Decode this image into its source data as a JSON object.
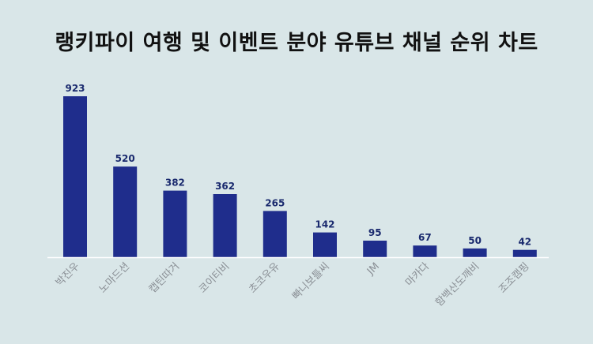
{
  "title": "랭키파이 여행 및 이벤트 분야 유튜브 채널 순위 차트",
  "colors": {
    "background": "#d9e6e8",
    "bar": "#1f2d8c",
    "value_label": "#1a2a6e",
    "category_label": "#8a8f95",
    "baseline": "#ffffff"
  },
  "chart_data": {
    "type": "bar",
    "categories": [
      "박진우",
      "노마드션",
      "캡틴따거",
      "코이티비",
      "초코우유",
      "빠니보틀씨",
      "JM",
      "마카다",
      "함백산도깨비",
      "조조캠핑"
    ],
    "values": [
      923,
      520,
      382,
      362,
      265,
      142,
      95,
      67,
      50,
      42
    ],
    "ylim": [
      0,
      923
    ],
    "grid": false,
    "legend": "none"
  }
}
